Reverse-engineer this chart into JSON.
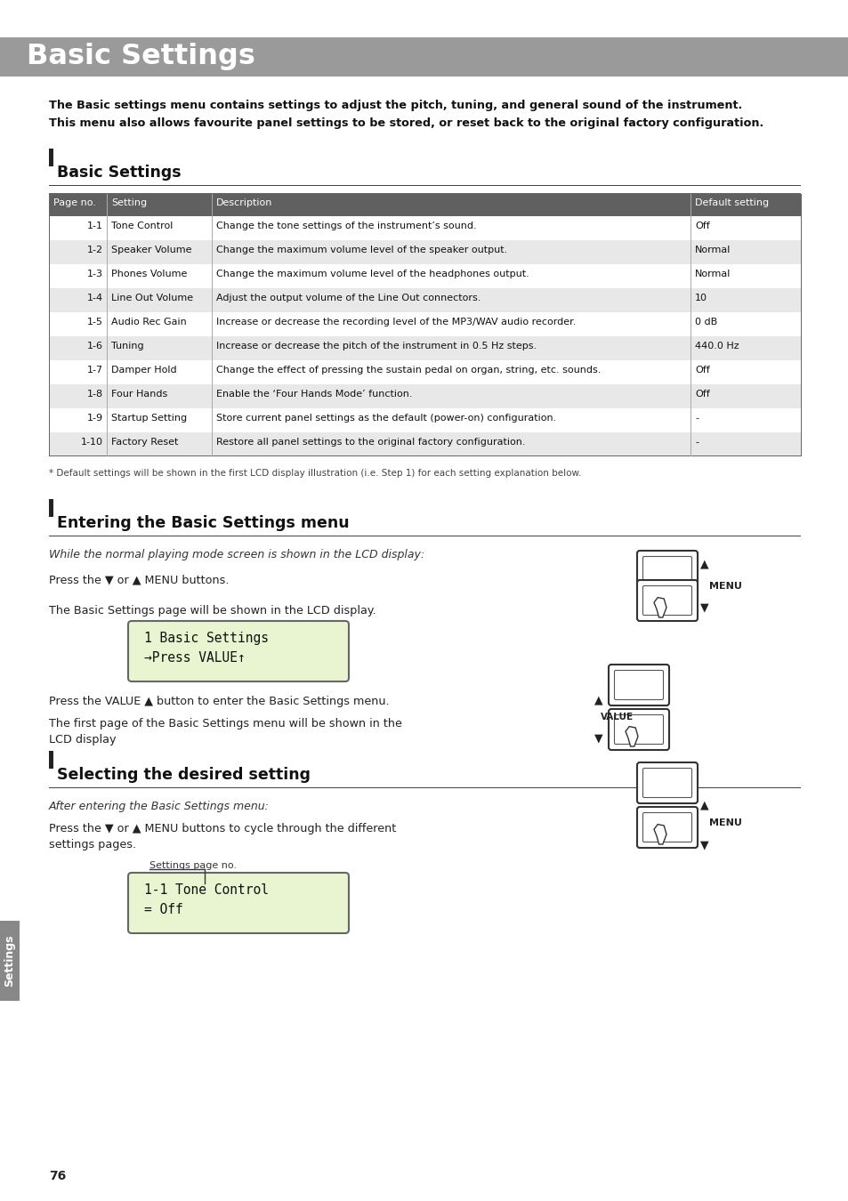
{
  "title": "Basic Settings",
  "title_bg": "#9a9a9a",
  "title_color": "#ffffff",
  "bg_color": "#ffffff",
  "intro_lines": [
    "The Basic settings menu contains settings to adjust the pitch, tuning, and general sound of the instrument.",
    "This menu also allows favourite panel settings to be stored, or reset back to the original factory configuration."
  ],
  "section1_title": "Basic Settings",
  "section2_title": "Entering the Basic Settings menu",
  "section3_title": "Selecting the desired setting",
  "table_header": [
    "Page no.",
    "Setting",
    "Description",
    "Default setting"
  ],
  "table_header_bg": "#606060",
  "table_header_color": "#ffffff",
  "table_rows": [
    [
      "1-1",
      "Tone Control",
      "Change the tone settings of the instrument’s sound.",
      "Off"
    ],
    [
      "1-2",
      "Speaker Volume",
      "Change the maximum volume level of the speaker output.",
      "Normal"
    ],
    [
      "1-3",
      "Phones Volume",
      "Change the maximum volume level of the headphones output.",
      "Normal"
    ],
    [
      "1-4",
      "Line Out Volume",
      "Adjust the output volume of the Line Out connectors.",
      "10"
    ],
    [
      "1-5",
      "Audio Rec Gain",
      "Increase or decrease the recording level of the MP3/WAV audio recorder.",
      "0 dB"
    ],
    [
      "1-6",
      "Tuning",
      "Increase or decrease the pitch of the instrument in 0.5 Hz steps.",
      "440.0 Hz"
    ],
    [
      "1-7",
      "Damper Hold",
      "Change the effect of pressing the sustain pedal on organ, string, etc. sounds.",
      "Off"
    ],
    [
      "1-8",
      "Four Hands",
      "Enable the ‘Four Hands Mode’ function.",
      "Off"
    ],
    [
      "1-9",
      "Startup Setting",
      "Store current panel settings as the default (power-on) configuration.",
      "-"
    ],
    [
      "1-10",
      "Factory Reset",
      "Restore all panel settings to the original factory configuration.",
      "-"
    ]
  ],
  "row_even_bg": "#ffffff",
  "row_odd_bg": "#e8e8e8",
  "footnote": "* Default settings will be shown in the first LCD display illustration (i.e. Step 1) for each setting explanation below.",
  "section2_italic": "While the normal playing mode screen is shown in the LCD display:",
  "section2_text1": "Press the ▼ or ▲ MENU buttons.",
  "section2_text2": "The Basic Settings page will be shown in the LCD display.",
  "section2_text3": "Press the VALUE ▲ button to enter the Basic Settings menu.",
  "section2_text4_1": "The first page of the Basic Settings menu will be shown in the",
  "section2_text4_2": "LCD display",
  "section3_italic": "After entering the Basic Settings menu:",
  "section3_text1_1": "Press the ▼ or ▲ MENU buttons to cycle through the different",
  "section3_text1_2": "settings pages.",
  "settings_label": "Settings page no.",
  "page_number": "76",
  "sidebar_color": "#888888",
  "sidebar_text": "Settings"
}
